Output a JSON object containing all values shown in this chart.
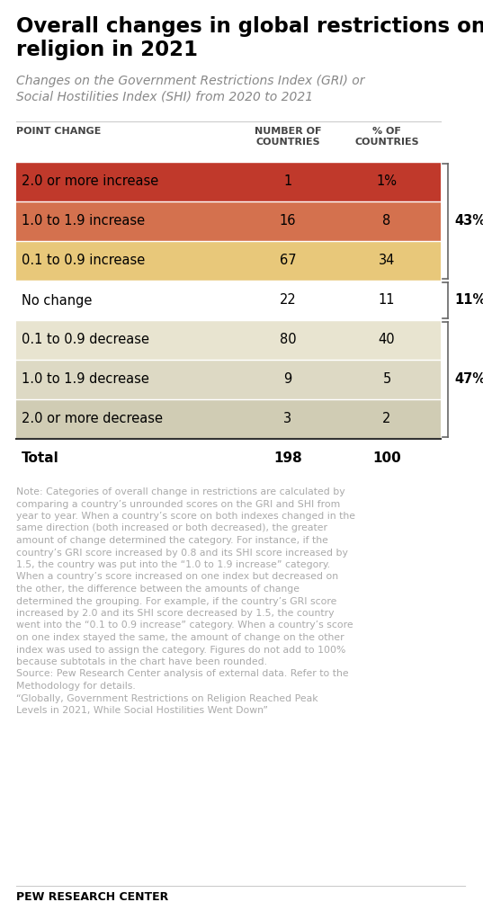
{
  "title": "Overall changes in global restrictions on\nreligion in 2021",
  "subtitle": "Changes on the Government Restrictions Index (GRI) or\nSocial Hostilities Index (SHI) from 2020 to 2021",
  "col_headers": [
    "POINT CHANGE",
    "NUMBER OF\nCOUNTRIES",
    "% OF\nCOUNTRIES"
  ],
  "rows": [
    {
      "label": "2.0 or more increase",
      "countries": "1",
      "pct": "1%",
      "bg": "#c0392b"
    },
    {
      "label": "1.0 to 1.9 increase",
      "countries": "16",
      "pct": "8",
      "bg": "#d4714e"
    },
    {
      "label": "0.1 to 0.9 increase",
      "countries": "67",
      "pct": "34",
      "bg": "#e8c87a"
    },
    {
      "label": "No change",
      "countries": "22",
      "pct": "11",
      "bg": "#ffffff"
    },
    {
      "label": "0.1 to 0.9 decrease",
      "countries": "80",
      "pct": "40",
      "bg": "#e8e4d0"
    },
    {
      "label": "1.0 to 1.9 decrease",
      "countries": "9",
      "pct": "5",
      "bg": "#ddd9c4"
    },
    {
      "label": "2.0 or more decrease",
      "countries": "3",
      "pct": "2",
      "bg": "#d0ccb4"
    }
  ],
  "total_row": {
    "label": "Total",
    "countries": "198",
    "pct": "100"
  },
  "brackets": [
    {
      "rows": [
        0,
        1,
        2
      ],
      "label": "43%"
    },
    {
      "rows": [
        3
      ],
      "label": "11%"
    },
    {
      "rows": [
        4,
        5,
        6
      ],
      "label": "47%"
    }
  ],
  "note_lines": [
    "Note: Categories of overall change in restrictions are calculated by",
    "comparing a country’s unrounded scores on the GRI and SHI from",
    "year to year. When a country’s score on both indexes changed in the",
    "same direction (both increased or both decreased), the greater",
    "amount of change determined the category. For instance, if the",
    "country’s GRI score increased by 0.8 and its SHI score increased by",
    "1.5, the country was put into the “1.0 to 1.9 increase” category.",
    "When a country’s score increased on one index but decreased on",
    "the other, the difference between the amounts of change",
    "determined the grouping. For example, if the country’s GRI score",
    "increased by 2.0 and its SHI score decreased by 1.5, the country",
    "went into the “0.1 to 0.9 increase” category. When a country’s score",
    "on one index stayed the same, the amount of change on the other",
    "index was used to assign the category. Figures do not add to 100%",
    "because subtotals in the chart have been rounded.",
    "Source: Pew Research Center analysis of external data. Refer to the",
    "Methodology for details.",
    "“Globally, Government Restrictions on Religion Reached Peak",
    "Levels in 2021, While Social Hostilities Went Down”"
  ],
  "footer": "PEW RESEARCH CENTER",
  "bg_color": "#ffffff",
  "title_color": "#000000",
  "subtitle_color": "#888888",
  "note_color": "#aaaaaa",
  "footer_color": "#000000",
  "header_color": "#444444"
}
